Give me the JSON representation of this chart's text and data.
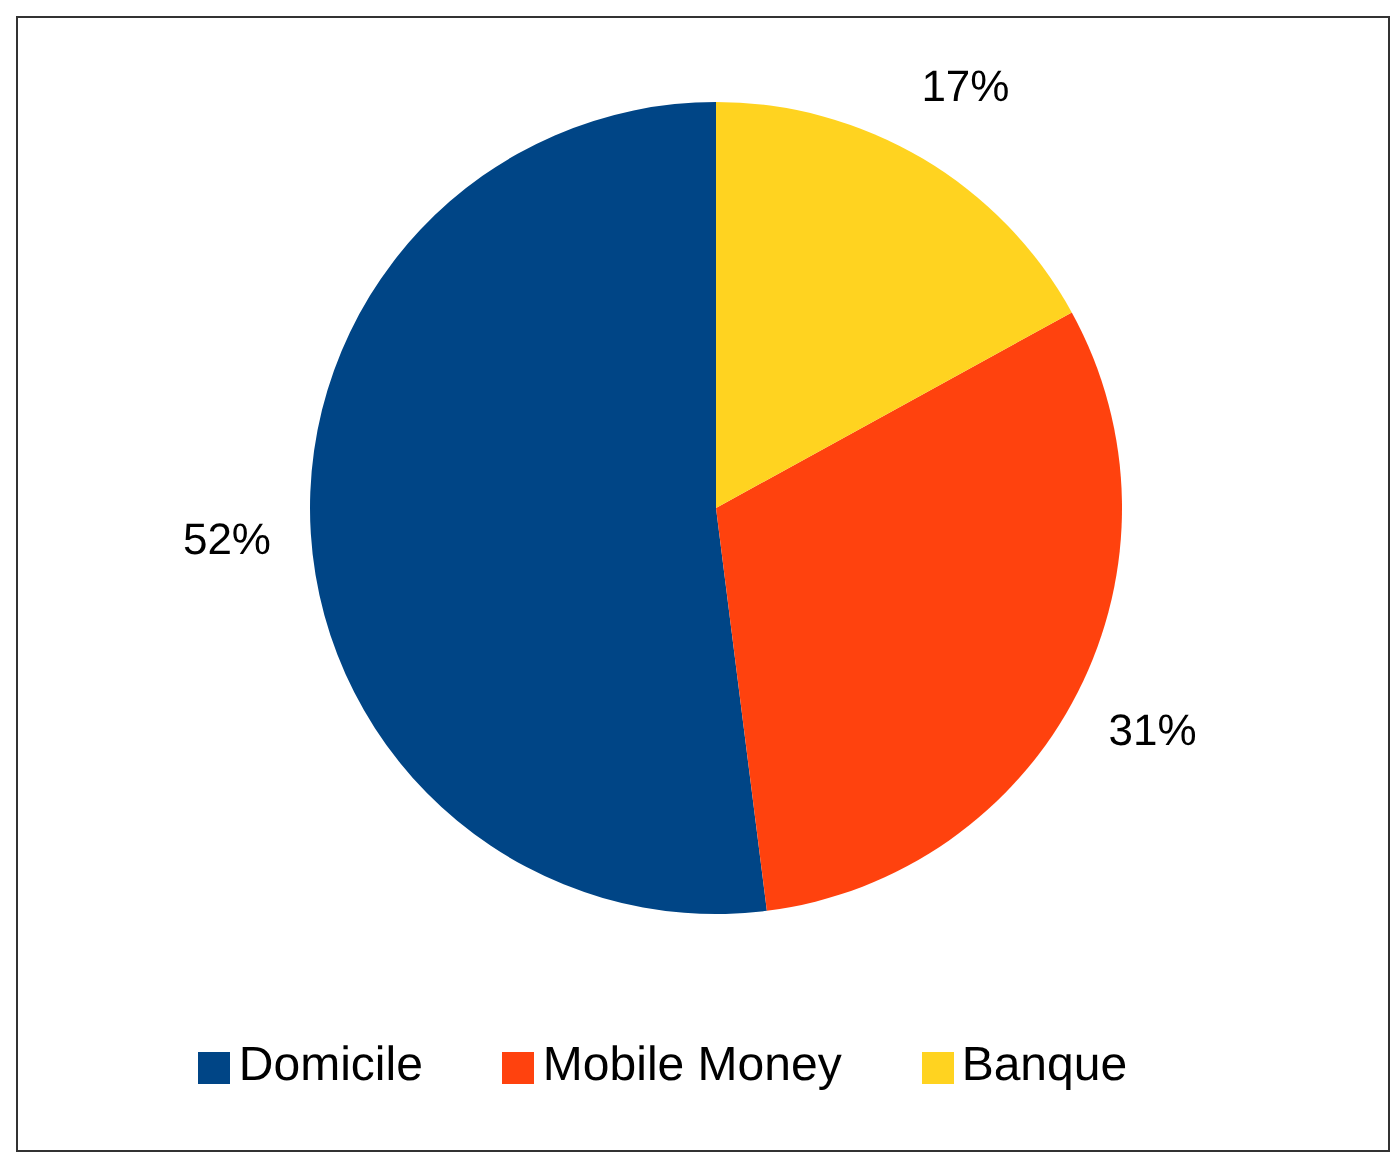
{
  "chart_data": {
    "type": "pie",
    "categories": [
      "Domicile",
      "Mobile Money",
      "Banque"
    ],
    "values": [
      52,
      31,
      17
    ],
    "value_labels": [
      "52%",
      "31%",
      "17%"
    ],
    "colors": [
      "#004586",
      "#ff420e",
      "#ffd320"
    ],
    "legend": "bottom"
  }
}
